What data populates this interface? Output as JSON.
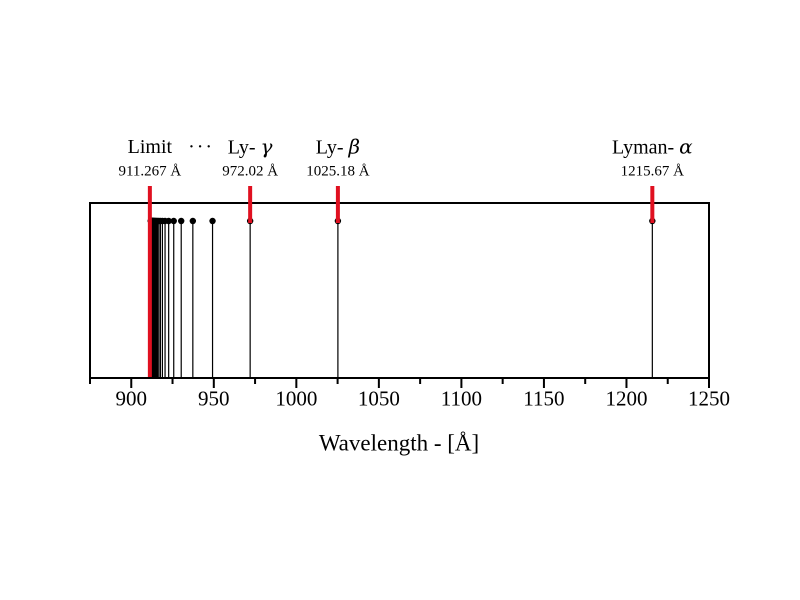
{
  "page": {
    "background": "#ffffff"
  },
  "chart_data": {
    "type": "stem",
    "description": "Hydrogen Lyman series emission line wavelengths",
    "xlabel": "Wavelength - [Å]",
    "xlim": [
      875,
      1250
    ],
    "x_major_ticks": [
      900,
      950,
      1000,
      1050,
      1100,
      1150,
      1200,
      1250
    ],
    "x_minor_ticks": [
      875,
      925,
      975,
      1025,
      1075,
      1125,
      1175,
      1225
    ],
    "grid": false,
    "legend": null,
    "labeled_lines": [
      {
        "text": "Limit",
        "italic": "",
        "value_label": "911.267 Å",
        "wavelength": 911.267,
        "marker": "to-axis"
      },
      {
        "text": "Ly- ",
        "italic": "γ",
        "value_label": "972.02 Å",
        "wavelength": 972.02,
        "marker": "to-dot"
      },
      {
        "text": "Ly- ",
        "italic": "β",
        "value_label": "1025.18 Å",
        "wavelength": 1025.18,
        "marker": "to-dot"
      },
      {
        "text": "Lyman- ",
        "italic": "α",
        "value_label": "1215.67 Å",
        "wavelength": 1215.67,
        "marker": "to-dot"
      }
    ],
    "ellipsis": {
      "text": "···",
      "anchor_wavelength": 942.3
    },
    "stem_wavelengths": [
      1215.67,
      1025.18,
      972.02,
      949.24,
      937.3,
      930.26,
      925.73,
      922.66,
      920.47,
      918.86,
      917.64,
      916.7,
      915.94,
      915.34,
      914.84,
      914.43,
      914.09,
      913.8,
      913.55,
      913.34,
      913.15,
      912.99,
      912.85,
      912.72,
      912.61,
      912.51,
      912.42,
      912.34,
      912.27,
      912.21,
      912.15,
      912.1,
      912.05,
      912.01,
      911.97,
      911.94,
      911.9,
      911.87,
      911.84
    ],
    "series_limit_wavelength": 911.267,
    "colors": {
      "stem": "#000000",
      "axis": "#000000",
      "marker": "#e01020"
    }
  }
}
